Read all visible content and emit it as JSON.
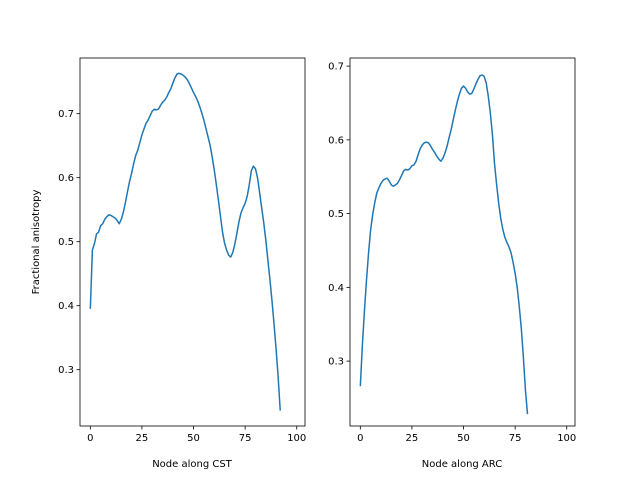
{
  "chart_data": [
    {
      "type": "line",
      "xlabel": "Node along CST",
      "ylabel": "Fractional anisotropy",
      "xlim": [
        -5,
        104
      ],
      "ylim": [
        0.212,
        0.787
      ],
      "xticks": [
        0,
        25,
        50,
        75,
        100
      ],
      "yticks": [
        0.3,
        0.4,
        0.5,
        0.6,
        0.7
      ],
      "xtick_labels": [
        "0",
        "25",
        "50",
        "75",
        "100"
      ],
      "ytick_labels": [
        "0.3",
        "0.4",
        "0.5",
        "0.6",
        "0.7"
      ],
      "line_color": "#1f77b4",
      "series": [
        {
          "x": [
            0,
            1,
            2,
            3,
            4,
            5,
            6,
            7,
            8,
            9,
            10,
            11,
            12,
            13,
            14,
            15,
            16,
            17,
            18,
            19,
            20,
            21,
            22,
            23,
            24,
            25,
            26,
            27,
            28,
            29,
            30,
            31,
            32,
            33,
            34,
            35,
            36,
            37,
            38,
            39,
            40,
            41,
            42,
            43,
            44,
            45,
            46,
            47,
            48,
            49,
            50,
            51,
            52,
            53,
            54,
            55,
            56,
            57,
            58,
            59,
            60,
            61,
            62,
            63,
            64,
            65,
            66,
            67,
            68,
            69,
            70,
            71,
            72,
            73,
            74,
            75,
            76,
            77,
            78,
            79,
            80,
            81,
            82,
            83,
            84,
            85,
            86,
            87,
            88,
            89,
            90,
            91,
            92,
            93,
            94,
            95,
            96,
            97,
            98,
            99
          ],
          "values": [
            0.395,
            0.487,
            0.497,
            0.512,
            0.515,
            0.525,
            0.528,
            0.535,
            0.539,
            0.542,
            0.541,
            0.539,
            0.537,
            0.533,
            0.528,
            0.535,
            0.546,
            0.561,
            0.578,
            0.594,
            0.607,
            0.622,
            0.635,
            0.643,
            0.655,
            0.667,
            0.676,
            0.685,
            0.69,
            0.697,
            0.704,
            0.707,
            0.706,
            0.707,
            0.713,
            0.718,
            0.721,
            0.726,
            0.733,
            0.739,
            0.748,
            0.756,
            0.762,
            0.763,
            0.762,
            0.76,
            0.757,
            0.753,
            0.747,
            0.74,
            0.733,
            0.727,
            0.72,
            0.711,
            0.701,
            0.69,
            0.677,
            0.664,
            0.651,
            0.633,
            0.613,
            0.59,
            0.566,
            0.541,
            0.516,
            0.498,
            0.487,
            0.479,
            0.476,
            0.483,
            0.496,
            0.513,
            0.531,
            0.545,
            0.553,
            0.56,
            0.571,
            0.589,
            0.611,
            0.618,
            0.614,
            0.6,
            0.577,
            0.553,
            0.53,
            0.503,
            0.472,
            0.441,
            0.408,
            0.371,
            0.332,
            0.288,
            0.236,
            0.236,
            0.236,
            0.236,
            0.236,
            0.236,
            0.236,
            0.236
          ],
          "note_visible_range": [
            0,
            99
          ]
        }
      ]
    },
    {
      "type": "line",
      "xlabel": "Node along ARC",
      "ylabel": "",
      "xlim": [
        -5,
        104
      ],
      "ylim": [
        0.212,
        0.711
      ],
      "xticks": [
        0,
        25,
        50,
        75,
        100
      ],
      "yticks": [
        0.3,
        0.4,
        0.5,
        0.6,
        0.7
      ],
      "xtick_labels": [
        "0",
        "25",
        "50",
        "75",
        "100"
      ],
      "ytick_labels": [
        "0.3",
        "0.4",
        "0.5",
        "0.6",
        "0.7"
      ],
      "line_color": "#1f77b4",
      "series": [
        {
          "x": [
            0,
            1,
            2,
            3,
            4,
            5,
            6,
            7,
            8,
            9,
            10,
            11,
            12,
            13,
            14,
            15,
            16,
            17,
            18,
            19,
            20,
            21,
            22,
            23,
            24,
            25,
            26,
            27,
            28,
            29,
            30,
            31,
            32,
            33,
            34,
            35,
            36,
            37,
            38,
            39,
            40,
            41,
            42,
            43,
            44,
            45,
            46,
            47,
            48,
            49,
            50,
            51,
            52,
            53,
            54,
            55,
            56,
            57,
            58,
            59,
            60,
            61,
            62,
            63,
            64,
            65,
            66,
            67,
            68,
            69,
            70,
            71,
            72,
            73,
            74,
            75,
            76,
            77,
            78,
            79,
            80,
            81,
            82,
            83,
            84,
            85,
            86,
            87,
            88,
            89,
            90,
            91,
            92,
            93,
            94,
            95,
            96,
            97,
            98,
            99
          ],
          "values": [
            0.266,
            0.322,
            0.368,
            0.41,
            0.447,
            0.478,
            0.499,
            0.515,
            0.528,
            0.535,
            0.541,
            0.545,
            0.547,
            0.548,
            0.544,
            0.539,
            0.537,
            0.539,
            0.541,
            0.546,
            0.552,
            0.558,
            0.56,
            0.559,
            0.561,
            0.565,
            0.566,
            0.571,
            0.58,
            0.588,
            0.593,
            0.596,
            0.597,
            0.596,
            0.592,
            0.587,
            0.583,
            0.578,
            0.574,
            0.571,
            0.575,
            0.582,
            0.591,
            0.603,
            0.614,
            0.627,
            0.64,
            0.652,
            0.662,
            0.67,
            0.673,
            0.67,
            0.665,
            0.662,
            0.663,
            0.669,
            0.676,
            0.682,
            0.687,
            0.688,
            0.686,
            0.677,
            0.659,
            0.636,
            0.607,
            0.568,
            0.54,
            0.515,
            0.494,
            0.479,
            0.468,
            0.461,
            0.455,
            0.447,
            0.434,
            0.419,
            0.4,
            0.374,
            0.344,
            0.305,
            0.26,
            0.228,
            0.228,
            0.228,
            0.228,
            0.228,
            0.228,
            0.228,
            0.228,
            0.228,
            0.228,
            0.228,
            0.228,
            0.228,
            0.228,
            0.228,
            0.228,
            0.228,
            0.228,
            0.228
          ],
          "note_visible_range": [
            0,
            99
          ]
        }
      ]
    }
  ]
}
